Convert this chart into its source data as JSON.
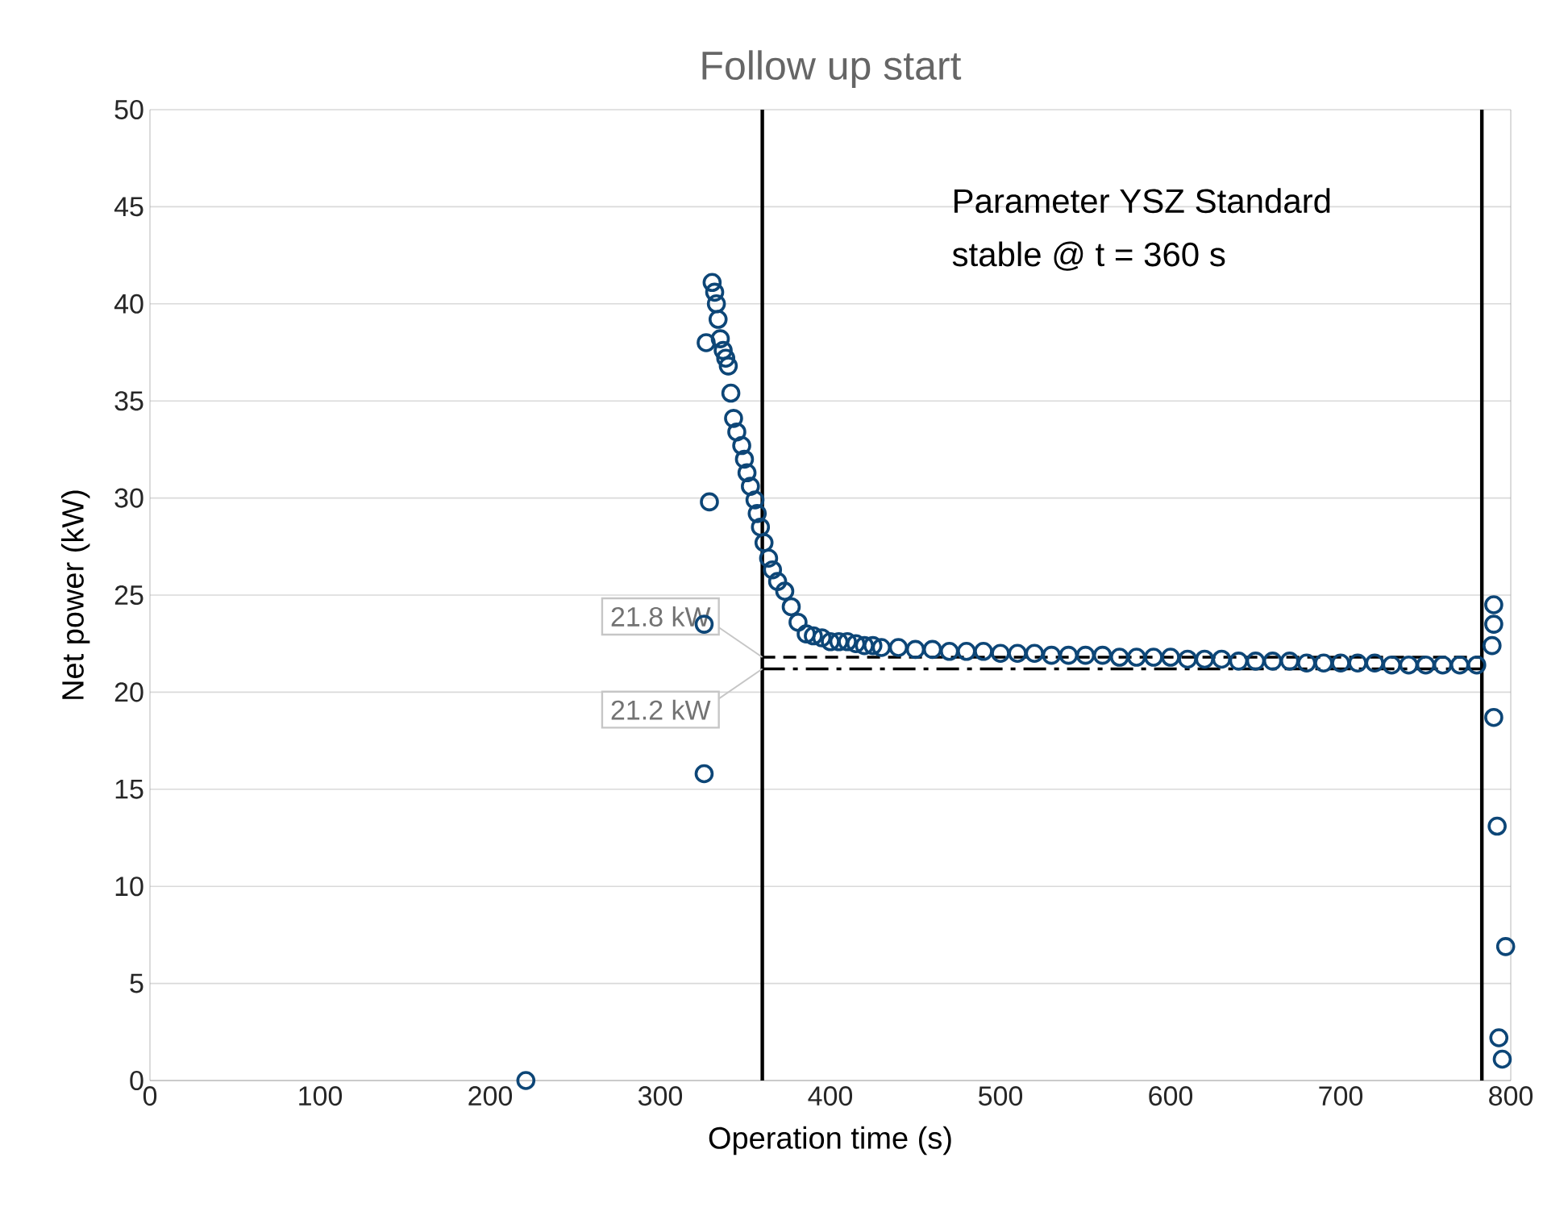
{
  "chart_data": {
    "type": "scatter",
    "title": "Follow up start",
    "xlabel": "Operation time (s)",
    "ylabel": "Net power (kW)",
    "x": [
      221,
      325.8,
      325.8,
      327,
      328.9,
      330.5,
      332,
      333,
      334,
      335.3,
      337,
      338.5,
      340,
      341.5,
      343.1,
      345,
      347.9,
      349.5,
      351,
      353,
      355.7,
      357,
      358.9,
      361,
      363.7,
      366,
      369,
      373.2,
      377,
      381,
      385.8,
      390,
      395,
      400,
      405,
      410,
      415,
      420,
      425,
      430,
      440,
      450,
      460,
      470,
      480,
      490,
      500,
      510,
      520,
      530,
      540,
      550,
      560,
      570,
      580,
      590,
      600,
      610,
      620,
      630,
      640,
      650,
      660,
      670,
      680,
      690,
      700,
      710,
      720,
      730,
      740,
      750,
      760,
      770,
      780,
      789,
      790,
      790,
      790,
      792,
      797,
      793,
      795
    ],
    "values": [
      0,
      23.5,
      15.8,
      38,
      29.8,
      41.1,
      40.6,
      40.0,
      39.2,
      38.2,
      37.6,
      37.2,
      36.8,
      35.4,
      34.1,
      33.4,
      32.7,
      32.0,
      31.3,
      30.6,
      29.9,
      29.2,
      28.5,
      27.7,
      26.9,
      26.3,
      25.7,
      25.2,
      24.4,
      23.6,
      23,
      22.9,
      22.8,
      22.6,
      22.6,
      22.6,
      22.5,
      22.4,
      22.4,
      22.3,
      22.3,
      22.2,
      22.2,
      22.1,
      22.1,
      22.1,
      22.0,
      22.0,
      22.0,
      21.9,
      21.9,
      21.9,
      21.9,
      21.8,
      21.8,
      21.8,
      21.8,
      21.7,
      21.7,
      21.7,
      21.6,
      21.6,
      21.6,
      21.6,
      21.5,
      21.5,
      21.5,
      21.5,
      21.5,
      21.4,
      21.4,
      21.4,
      21.4,
      21.4,
      21.4,
      22.4,
      23.5,
      24.5,
      18.7,
      13.1,
      6.9,
      2.2,
      1.1
    ],
    "color": "#0d4677",
    "marker": "circle",
    "xlim": [
      0,
      800
    ],
    "xticks": [
      0,
      100,
      200,
      300,
      400,
      500,
      600,
      700,
      800
    ],
    "ylim": [
      0,
      50
    ],
    "yticks": [
      0,
      5,
      10,
      15,
      20,
      25,
      30,
      35,
      40,
      45,
      50
    ],
    "grid": "y",
    "ref_lines": [
      {
        "axis": "x",
        "value": 360,
        "color": "#000000",
        "line_style": "solid"
      },
      {
        "axis": "x",
        "value": 783,
        "color": "#000000",
        "line_style": "solid"
      },
      {
        "axis": "y",
        "value": 21.8,
        "label": "21.8 kW",
        "color": "#000000",
        "line_style": "dashed"
      },
      {
        "axis": "y",
        "value": 21.2,
        "label": "21.2 kW",
        "color": "#000000",
        "line_style": "dashdot"
      }
    ],
    "annotations": [
      "Parameter YSZ Standard",
      "stable @ t = 360 s"
    ]
  }
}
